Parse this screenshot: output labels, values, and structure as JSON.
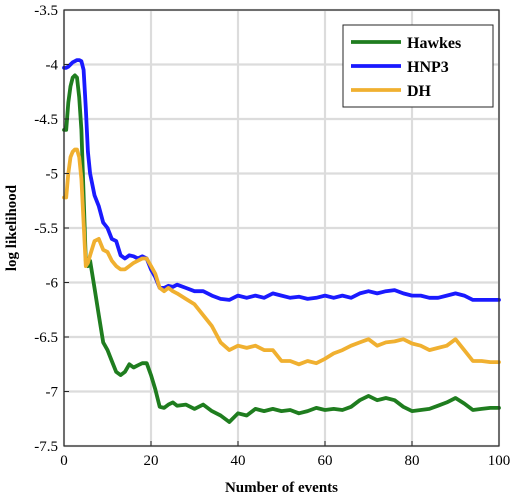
{
  "chart_data": {
    "type": "line",
    "title": "",
    "xlabel": "Number of events",
    "ylabel": "log likelihood",
    "xlim": [
      0,
      100
    ],
    "ylim": [
      -7.5,
      -3.5
    ],
    "xticks": [
      0,
      20,
      40,
      60,
      80,
      100
    ],
    "yticks": [
      -3.5,
      -4,
      -4.5,
      -5,
      -5.5,
      -6,
      -6.5,
      -7,
      -7.5
    ],
    "grid": true,
    "legend_position": "top-right",
    "series": [
      {
        "name": "Hawkes",
        "color": "#1f7d1f",
        "x": [
          0,
          0.5,
          1,
          1.5,
          2,
          2.5,
          3,
          3.5,
          4,
          4.5,
          5,
          5.5,
          6,
          7,
          8,
          9,
          10,
          11,
          12,
          13,
          14,
          15,
          16,
          17,
          18,
          19,
          20,
          21,
          22,
          23,
          24,
          25,
          26,
          28,
          30,
          32,
          34,
          36,
          38,
          40,
          42,
          44,
          46,
          48,
          50,
          52,
          54,
          56,
          58,
          60,
          62,
          64,
          66,
          68,
          70,
          72,
          74,
          76,
          78,
          80,
          82,
          84,
          86,
          88,
          90,
          92,
          94,
          96,
          98,
          100
        ],
        "values": [
          -4.6,
          -4.6,
          -4.35,
          -4.2,
          -4.12,
          -4.1,
          -4.12,
          -4.3,
          -4.6,
          -5.2,
          -5.8,
          -5.85,
          -5.8,
          -6.05,
          -6.3,
          -6.55,
          -6.62,
          -6.72,
          -6.82,
          -6.85,
          -6.82,
          -6.75,
          -6.78,
          -6.76,
          -6.74,
          -6.74,
          -6.85,
          -6.98,
          -7.14,
          -7.15,
          -7.12,
          -7.1,
          -7.13,
          -7.12,
          -7.16,
          -7.12,
          -7.18,
          -7.22,
          -7.28,
          -7.2,
          -7.22,
          -7.16,
          -7.18,
          -7.16,
          -7.18,
          -7.17,
          -7.2,
          -7.18,
          -7.15,
          -7.17,
          -7.16,
          -7.17,
          -7.14,
          -7.08,
          -7.04,
          -7.08,
          -7.06,
          -7.08,
          -7.14,
          -7.18,
          -7.17,
          -7.16,
          -7.13,
          -7.1,
          -7.06,
          -7.11,
          -7.17,
          -7.16,
          -7.15,
          -7.15
        ]
      },
      {
        "name": "HNP3",
        "color": "#1a1aff",
        "x": [
          0,
          0.5,
          1,
          1.5,
          2,
          2.5,
          3,
          3.5,
          4,
          4.5,
          5,
          5.5,
          6,
          7,
          8,
          9,
          10,
          11,
          12,
          13,
          14,
          15,
          16,
          17,
          18,
          19,
          20,
          21,
          22,
          23,
          24,
          25,
          26,
          28,
          30,
          32,
          34,
          36,
          38,
          40,
          42,
          44,
          46,
          48,
          50,
          52,
          54,
          56,
          58,
          60,
          62,
          64,
          66,
          68,
          70,
          72,
          74,
          76,
          78,
          80,
          82,
          84,
          86,
          88,
          90,
          92,
          94,
          96,
          98,
          100
        ],
        "values": [
          -4.03,
          -4.03,
          -4.02,
          -4.0,
          -3.98,
          -3.97,
          -3.96,
          -3.96,
          -3.97,
          -4.05,
          -4.4,
          -4.8,
          -5.0,
          -5.2,
          -5.3,
          -5.45,
          -5.5,
          -5.6,
          -5.62,
          -5.75,
          -5.78,
          -5.75,
          -5.76,
          -5.78,
          -5.76,
          -5.78,
          -5.88,
          -5.95,
          -6.05,
          -6.05,
          -6.03,
          -6.04,
          -6.02,
          -6.05,
          -6.08,
          -6.08,
          -6.12,
          -6.15,
          -6.16,
          -6.12,
          -6.14,
          -6.12,
          -6.14,
          -6.1,
          -6.12,
          -6.14,
          -6.13,
          -6.15,
          -6.14,
          -6.12,
          -6.14,
          -6.12,
          -6.14,
          -6.1,
          -6.08,
          -6.1,
          -6.08,
          -6.07,
          -6.1,
          -6.12,
          -6.12,
          -6.14,
          -6.14,
          -6.12,
          -6.1,
          -6.12,
          -6.16,
          -6.16,
          -6.16,
          -6.16
        ]
      },
      {
        "name": "DH",
        "color": "#f0b030",
        "x": [
          0,
          0.5,
          1,
          1.5,
          2,
          2.5,
          3,
          3.5,
          4,
          4.5,
          5,
          5.5,
          6,
          7,
          8,
          9,
          10,
          11,
          12,
          13,
          14,
          15,
          16,
          17,
          18,
          19,
          20,
          21,
          22,
          23,
          24,
          25,
          26,
          28,
          30,
          32,
          34,
          36,
          38,
          40,
          42,
          44,
          46,
          48,
          50,
          52,
          54,
          56,
          58,
          60,
          62,
          64,
          66,
          68,
          70,
          72,
          74,
          76,
          78,
          80,
          82,
          84,
          86,
          88,
          90,
          92,
          94,
          96,
          98,
          100
        ],
        "values": [
          -5.22,
          -5.22,
          -5.0,
          -4.85,
          -4.8,
          -4.78,
          -4.78,
          -4.85,
          -5.05,
          -5.45,
          -5.85,
          -5.82,
          -5.75,
          -5.62,
          -5.6,
          -5.7,
          -5.72,
          -5.8,
          -5.85,
          -5.88,
          -5.88,
          -5.85,
          -5.82,
          -5.8,
          -5.78,
          -5.78,
          -5.85,
          -5.92,
          -6.05,
          -6.08,
          -6.05,
          -6.08,
          -6.1,
          -6.15,
          -6.2,
          -6.3,
          -6.4,
          -6.55,
          -6.62,
          -6.58,
          -6.6,
          -6.58,
          -6.62,
          -6.62,
          -6.72,
          -6.72,
          -6.75,
          -6.72,
          -6.74,
          -6.7,
          -6.65,
          -6.62,
          -6.58,
          -6.55,
          -6.52,
          -6.58,
          -6.55,
          -6.54,
          -6.52,
          -6.56,
          -6.58,
          -6.62,
          -6.6,
          -6.58,
          -6.52,
          -6.62,
          -6.72,
          -6.72,
          -6.73,
          -6.73
        ]
      }
    ]
  }
}
